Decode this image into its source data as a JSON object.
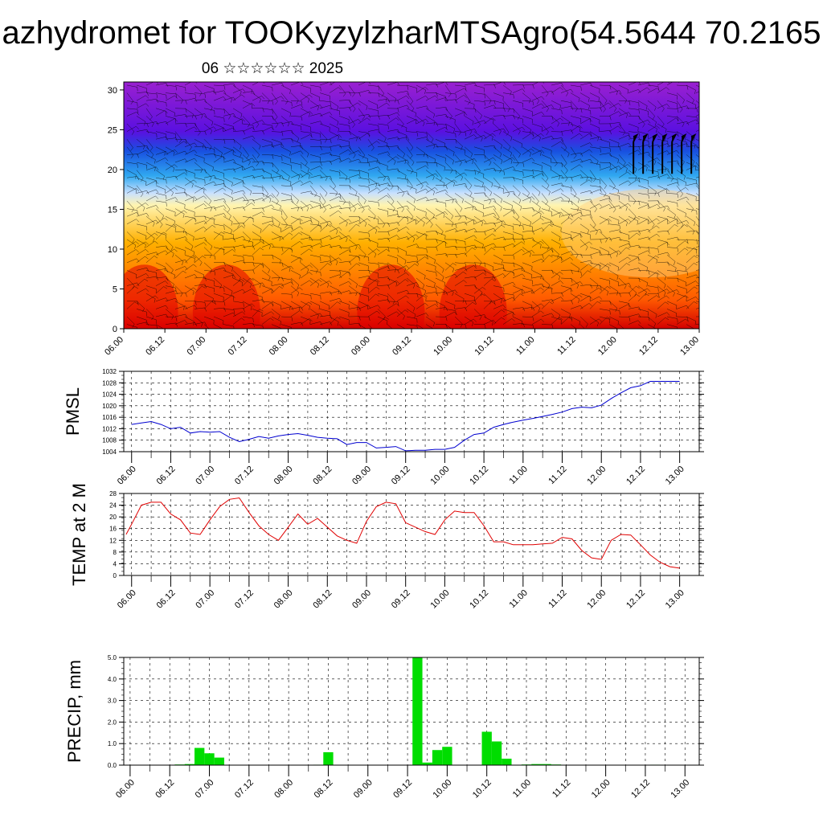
{
  "title": "azhydromet for TOOKyzylzharMTSAgro(54.5644 70.2165",
  "subtitle": "06 ☆☆☆☆☆☆ 2025",
  "chart_data": [
    {
      "type": "heatmap",
      "name": "cross-section",
      "ylim": [
        0,
        31
      ],
      "yticks": [
        0,
        5,
        10,
        15,
        20,
        25,
        30
      ],
      "x_range_days": [
        6,
        13
      ],
      "x_ticks": [
        "06.00",
        "06.12",
        "07.00",
        "07.12",
        "08.00",
        "08.12",
        "09.00",
        "09.12",
        "10.00",
        "10.12",
        "11.00",
        "11.12",
        "12.00",
        "12.12",
        "13.00"
      ],
      "colormap": [
        "#d40000",
        "#ff5a00",
        "#ffb000",
        "#fff4b0",
        "#c8e0ff",
        "#30a8f0",
        "#1850e0",
        "#5a10e0",
        "#9a20d0"
      ],
      "overlay": "wind barbs",
      "grid": false
    },
    {
      "type": "line",
      "ylabel": "PMSL",
      "ylim": [
        1004,
        1032
      ],
      "yticks": [
        1004,
        1008,
        1012,
        1016,
        1020,
        1024,
        1028,
        1032
      ],
      "color": "#0000d0",
      "x_ticks": [
        "06.00",
        "06.12",
        "07.00",
        "07.12",
        "08.00",
        "08.12",
        "09.00",
        "09.12",
        "10.00",
        "10.12",
        "11.00",
        "11.12",
        "12.00",
        "12.12",
        "13.00"
      ],
      "x": [
        6.0,
        6.125,
        6.25,
        6.375,
        6.5,
        6.625,
        6.75,
        6.875,
        7.0,
        7.125,
        7.25,
        7.375,
        7.5,
        7.625,
        7.75,
        7.875,
        8.0,
        8.125,
        8.25,
        8.375,
        8.5,
        8.625,
        8.75,
        8.875,
        9.0,
        9.125,
        9.25,
        9.375,
        9.5,
        9.625,
        9.75,
        9.875,
        10.0,
        10.125,
        10.25,
        10.375,
        10.5,
        10.625,
        10.75,
        10.875,
        11.0,
        11.125,
        11.25,
        11.375,
        11.5,
        11.625,
        11.75,
        11.875,
        12.0,
        12.125,
        12.25,
        12.375,
        12.5,
        12.625,
        12.75,
        12.875,
        13.0
      ],
      "y": [
        1013.5,
        1014,
        1014.5,
        1013.5,
        1012,
        1012.5,
        1010.5,
        1011,
        1010.8,
        1011,
        1009,
        1007.5,
        1008.3,
        1009.3,
        1008.7,
        1009.5,
        1010,
        1010.3,
        1009.7,
        1009,
        1008.7,
        1008.5,
        1006.5,
        1007.2,
        1007.2,
        1005.3,
        1005.5,
        1005.8,
        1004.3,
        1004.5,
        1004.5,
        1004.8,
        1004.8,
        1005.5,
        1008,
        1010,
        1010.5,
        1012.5,
        1013.5,
        1014.3,
        1015,
        1015.6,
        1016.3,
        1017,
        1017.8,
        1019,
        1019.5,
        1019.3,
        1020.2,
        1022.5,
        1024.5,
        1026.3,
        1027,
        1028.5,
        1028.5,
        1028.5,
        1028.5
      ],
      "grid": true
    },
    {
      "type": "line",
      "ylabel": "TEMP at 2 M",
      "ylim": [
        0,
        28
      ],
      "yticks": [
        0,
        4,
        8,
        12,
        16,
        20,
        24,
        28
      ],
      "color": "#e00000",
      "x_ticks": [
        "06.00",
        "06.12",
        "07.00",
        "07.12",
        "08.00",
        "08.12",
        "09.00",
        "09.12",
        "10.00",
        "10.12",
        "11.00",
        "11.12",
        "12.00",
        "12.12",
        "13.00"
      ],
      "x": [
        5.93,
        6.0,
        6.125,
        6.25,
        6.375,
        6.5,
        6.625,
        6.75,
        6.875,
        7.0,
        7.125,
        7.25,
        7.375,
        7.5,
        7.625,
        7.75,
        7.875,
        8.0,
        8.125,
        8.25,
        8.375,
        8.5,
        8.625,
        8.75,
        8.875,
        9.0,
        9.125,
        9.25,
        9.375,
        9.5,
        9.625,
        9.75,
        9.875,
        10.0,
        10.125,
        10.25,
        10.375,
        10.5,
        10.625,
        10.75,
        10.875,
        11.0,
        11.125,
        11.25,
        11.375,
        11.5,
        11.625,
        11.75,
        11.875,
        12.0,
        12.125,
        12.25,
        12.375,
        12.5,
        12.625,
        12.75,
        12.875,
        13.0
      ],
      "y": [
        14,
        17.5,
        24,
        25,
        25,
        21,
        19,
        14.5,
        14,
        19,
        23.5,
        26,
        26.5,
        21.5,
        17,
        14,
        12,
        16.5,
        21,
        17.5,
        19.5,
        16.5,
        13.5,
        12,
        11,
        18.5,
        23.5,
        25,
        24.5,
        18,
        16.5,
        15,
        14,
        19,
        22,
        21.5,
        21.5,
        17,
        11.5,
        11.5,
        10.5,
        10.5,
        10.5,
        10.8,
        11,
        13,
        12.5,
        8.5,
        6,
        5.5,
        12,
        14,
        13.8,
        10.5,
        7,
        4.5,
        3,
        2.5
      ],
      "grid": true
    },
    {
      "type": "bar",
      "ylabel": "PRECIP, mm",
      "ylim": [
        0,
        5
      ],
      "yticks": [
        "0.0",
        "1.0",
        "2.0",
        "3.0",
        "4.0",
        "5.0"
      ],
      "color": "#00dd00",
      "x_ticks": [
        "06.00",
        "06.12",
        "07.00",
        "07.12",
        "08.00",
        "08.12",
        "09.00",
        "09.12",
        "10.00",
        "10.12",
        "11.00",
        "11.12",
        "12.00",
        "12.12",
        "13.00"
      ],
      "bar_x": [
        6.0,
        6.125,
        6.25,
        6.375,
        6.5,
        6.625,
        6.75,
        6.875,
        7.0,
        7.125,
        7.25,
        7.375,
        7.5,
        7.625,
        7.75,
        7.875,
        8.0,
        8.125,
        8.25,
        8.375,
        8.5,
        8.625,
        8.75,
        8.875,
        9.0,
        9.125,
        9.25,
        9.375,
        9.5,
        9.625,
        9.75,
        9.875,
        10.0,
        10.125,
        10.25,
        10.375,
        10.5,
        10.625,
        10.75,
        10.875,
        11.0,
        11.125,
        11.25,
        11.375,
        11.5,
        11.625,
        11.75,
        11.875,
        12.0,
        12.125,
        12.25,
        12.375,
        12.5,
        12.625,
        12.75,
        12.875
      ],
      "values": [
        0,
        0,
        0,
        0,
        0,
        0.03,
        0.05,
        0.8,
        0.55,
        0.35,
        0,
        0,
        0,
        0,
        0,
        0,
        0,
        0,
        0,
        0.02,
        0.6,
        0,
        0,
        0,
        0,
        0,
        0,
        0,
        0,
        5.0,
        0.12,
        0.7,
        0.85,
        0,
        0,
        0,
        1.55,
        1.1,
        0.3,
        0,
        0.03,
        0.05,
        0.05,
        0.03,
        0,
        0,
        0,
        0,
        0,
        0,
        0,
        0,
        0,
        0.02,
        0,
        0
      ],
      "grid": true
    }
  ]
}
